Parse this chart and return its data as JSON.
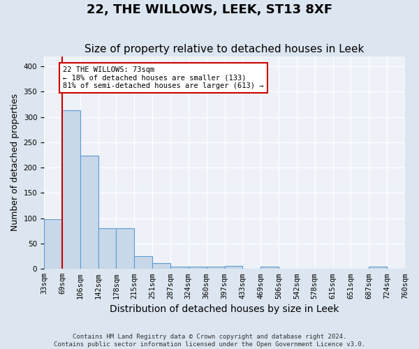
{
  "title": "22, THE WILLOWS, LEEK, ST13 8XF",
  "subtitle": "Size of property relative to detached houses in Leek",
  "xlabel": "Distribution of detached houses by size in Leek",
  "ylabel": "Number of detached properties",
  "footer": "Contains HM Land Registry data © Crown copyright and database right 2024.\nContains public sector information licensed under the Open Government Licence v3.0.",
  "tick_labels": [
    "33sqm",
    "69sqm",
    "106sqm",
    "142sqm",
    "178sqm",
    "215sqm",
    "251sqm",
    "287sqm",
    "324sqm",
    "360sqm",
    "397sqm",
    "433sqm",
    "469sqm",
    "506sqm",
    "542sqm",
    "578sqm",
    "615sqm",
    "651sqm",
    "687sqm",
    "724sqm",
    "760sqm"
  ],
  "bar_heights": [
    98,
    313,
    224,
    80,
    80,
    25,
    12,
    5,
    4,
    4,
    6,
    0,
    4,
    0,
    0,
    0,
    0,
    0,
    4,
    0
  ],
  "bar_color": "#c8d8e8",
  "bar_edge_color": "#5b9bd5",
  "annotation_line1": "22 THE WILLOWS: 73sqm",
  "annotation_line2": "← 18% of detached houses are smaller (133)",
  "annotation_line3": "81% of semi-detached houses are larger (613) →",
  "vline_color": "#cc0000",
  "annotation_box_facecolor": "#ffffff",
  "annotation_box_edgecolor": "#cc0000",
  "ylim": [
    0,
    420
  ],
  "yticks": [
    0,
    50,
    100,
    150,
    200,
    250,
    300,
    350,
    400
  ],
  "background_color": "#dce6f0",
  "plot_background_color": "#eef2f8",
  "title_fontsize": 13,
  "subtitle_fontsize": 11,
  "tick_fontsize": 7.5,
  "ylabel_fontsize": 9,
  "xlabel_fontsize": 10,
  "footer_fontsize": 6.5
}
